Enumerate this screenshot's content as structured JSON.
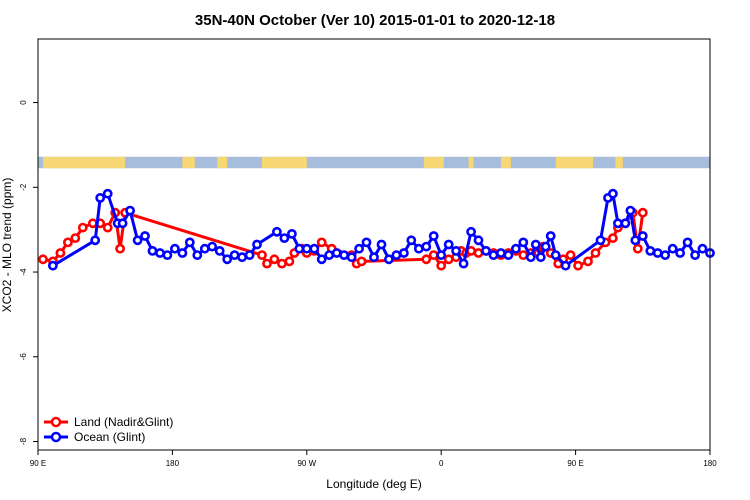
{
  "chart_data": {
    "type": "line",
    "title": "35N-40N October (Ver 10)   2015-01-01 to 2020-12-18",
    "xlabel": "Longitude (deg E)",
    "ylabel": "XCO2 - MLO trend (ppm)",
    "xlim": [
      -90,
      180
    ],
    "ylim": [
      -8.2,
      1.5
    ],
    "x_ticks": [
      {
        "value": -90,
        "label": "90 E"
      },
      {
        "value": -36,
        "label": "180"
      },
      {
        "value": 18,
        "label": "90 W"
      },
      {
        "value": 72,
        "label": "0"
      },
      {
        "value": 126,
        "label": "90 E"
      },
      {
        "value": 180,
        "label": "180"
      }
    ],
    "y_ticks": [
      {
        "value": 0,
        "label": "0"
      },
      {
        "value": -2,
        "label": "-2"
      },
      {
        "value": -4,
        "label": "-4"
      },
      {
        "value": -6,
        "label": "-6"
      },
      {
        "value": -8,
        "label": "-8"
      }
    ],
    "legend_position": "bottom-left",
    "surface_band": {
      "y_range": [
        -1.55,
        -1.28
      ],
      "land_color": "#f7d774",
      "ocean_color": "#a6bddb",
      "land_segments": [
        [
          -88,
          -55
        ],
        [
          -32,
          -27
        ],
        [
          -18,
          -14
        ],
        [
          0,
          18
        ],
        [
          65,
          73
        ],
        [
          83,
          85
        ],
        [
          96,
          100
        ],
        [
          118,
          133
        ],
        [
          142,
          145
        ]
      ]
    },
    "series": [
      {
        "name": "Land (Nadir&Glint)",
        "color": "#ff0000",
        "x": [
          -88,
          -84,
          -81,
          -78,
          -75,
          -72,
          -68,
          -65,
          -62,
          -59,
          -57,
          -55,
          0,
          2,
          5,
          8,
          11,
          13,
          16,
          18,
          21,
          24,
          28,
          36,
          38,
          40,
          66,
          69,
          72,
          75,
          78,
          80,
          82,
          84,
          87,
          90,
          93,
          96,
          99,
          102,
          105,
          108,
          111,
          113,
          116,
          119,
          121,
          124,
          127,
          131,
          134,
          138,
          141,
          143,
          146,
          149,
          151,
          153
        ],
        "y": [
          -3.7,
          -3.75,
          -3.55,
          -3.3,
          -3.2,
          -2.95,
          -2.85,
          -2.85,
          -2.95,
          -2.6,
          -3.45,
          -2.6,
          -3.6,
          -3.8,
          -3.7,
          -3.8,
          -3.75,
          -3.55,
          -3.45,
          -3.55,
          -3.5,
          -3.3,
          -3.45,
          -3.6,
          -3.8,
          -3.75,
          -3.7,
          -3.6,
          -3.85,
          -3.7,
          -3.65,
          -3.5,
          -3.55,
          -3.5,
          -3.55,
          -3.5,
          -3.55,
          -3.6,
          -3.55,
          -3.5,
          -3.6,
          -3.55,
          -3.55,
          -3.4,
          -3.55,
          -3.8,
          -3.7,
          -3.6,
          -3.85,
          -3.75,
          -3.55,
          -3.3,
          -3.2,
          -2.95,
          -2.85,
          -2.6,
          -3.45,
          -2.6
        ]
      },
      {
        "name": "Ocean (Glint)",
        "color": "#0000ff",
        "x": [
          -84,
          -67,
          -65,
          -62,
          -58,
          -56,
          -53,
          -50,
          -47,
          -44,
          -41,
          -38,
          -35,
          -32,
          -29,
          -26,
          -23,
          -20,
          -17,
          -14,
          -11,
          -8,
          -5,
          -2,
          6,
          9,
          12,
          15,
          18,
          21,
          24,
          27,
          30,
          33,
          36,
          39,
          42,
          45,
          48,
          51,
          54,
          57,
          60,
          63,
          66,
          69,
          72,
          75,
          78,
          81,
          84,
          87,
          90,
          93,
          96,
          99,
          102,
          105,
          108,
          110,
          112,
          114,
          116,
          118,
          122,
          136,
          139,
          141,
          143,
          146,
          148,
          150,
          153,
          156,
          159,
          162,
          165,
          168,
          171,
          174,
          177,
          180
        ],
        "y": [
          -3.85,
          -3.25,
          -2.25,
          -2.15,
          -2.85,
          -2.85,
          -2.55,
          -3.25,
          -3.15,
          -3.5,
          -3.55,
          -3.6,
          -3.45,
          -3.55,
          -3.3,
          -3.6,
          -3.45,
          -3.4,
          -3.5,
          -3.7,
          -3.6,
          -3.65,
          -3.6,
          -3.35,
          -3.05,
          -3.2,
          -3.1,
          -3.45,
          -3.45,
          -3.45,
          -3.7,
          -3.6,
          -3.55,
          -3.6,
          -3.65,
          -3.45,
          -3.3,
          -3.65,
          -3.35,
          -3.7,
          -3.6,
          -3.55,
          -3.25,
          -3.45,
          -3.4,
          -3.15,
          -3.6,
          -3.35,
          -3.5,
          -3.8,
          -3.05,
          -3.25,
          -3.5,
          -3.6,
          -3.55,
          -3.6,
          -3.45,
          -3.3,
          -3.65,
          -3.35,
          -3.65,
          -3.4,
          -3.15,
          -3.6,
          -3.85,
          -3.25,
          -2.25,
          -2.15,
          -2.85,
          -2.85,
          -2.55,
          -3.25,
          -3.15,
          -3.5,
          -3.55,
          -3.6,
          -3.45,
          -3.55,
          -3.3,
          -3.6,
          -3.45,
          -3.55
        ]
      }
    ]
  }
}
